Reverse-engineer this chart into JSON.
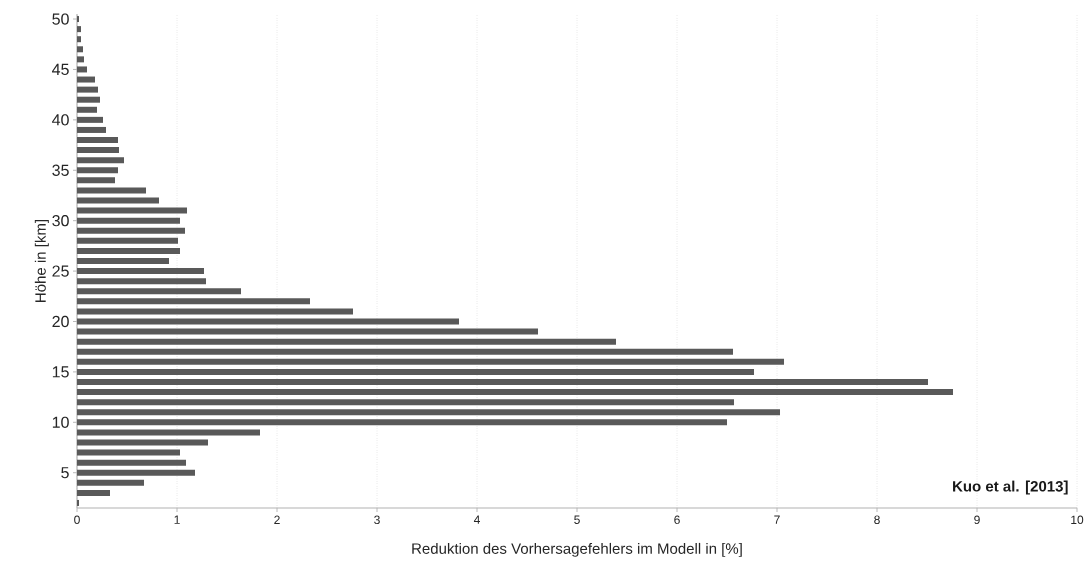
{
  "chart_data": {
    "type": "bar",
    "orientation": "horizontal",
    "xlabel": "Reduktion des Vorhersagefehlers im Modell in [%]",
    "ylabel": "Höhe in [km]",
    "x": [
      2,
      3,
      4,
      5,
      6,
      7,
      8,
      9,
      10,
      11,
      12,
      13,
      14,
      15,
      16,
      17,
      18,
      19,
      20,
      21,
      22,
      23,
      24,
      25,
      26,
      27,
      28,
      29,
      30,
      31,
      32,
      33,
      34,
      35,
      36,
      37,
      38,
      39,
      40,
      41,
      42,
      43,
      44,
      45,
      46,
      47,
      48,
      49,
      50
    ],
    "values": [
      0.02,
      0.33,
      0.67,
      1.18,
      1.09,
      1.03,
      1.31,
      1.83,
      6.5,
      7.03,
      6.57,
      8.76,
      8.51,
      6.77,
      7.07,
      6.56,
      5.39,
      4.61,
      3.82,
      2.76,
      2.33,
      1.64,
      1.29,
      1.27,
      0.92,
      1.03,
      1.01,
      1.08,
      1.03,
      1.1,
      0.82,
      0.69,
      0.38,
      0.41,
      0.47,
      0.42,
      0.41,
      0.29,
      0.26,
      0.2,
      0.23,
      0.21,
      0.18,
      0.1,
      0.07,
      0.06,
      0.04,
      0.04,
      0.02
    ],
    "color": "#595959",
    "xlim": [
      0,
      10
    ],
    "xticks": [
      0,
      1,
      2,
      3,
      4,
      5,
      6,
      7,
      8,
      9,
      10
    ],
    "ylim": [
      1.5,
      50.5
    ],
    "yticks": [
      5,
      10,
      15,
      20,
      25,
      30,
      35,
      40,
      45,
      50
    ],
    "grid": "x",
    "annotations": [
      "Kuo et al. [2013]"
    ]
  }
}
